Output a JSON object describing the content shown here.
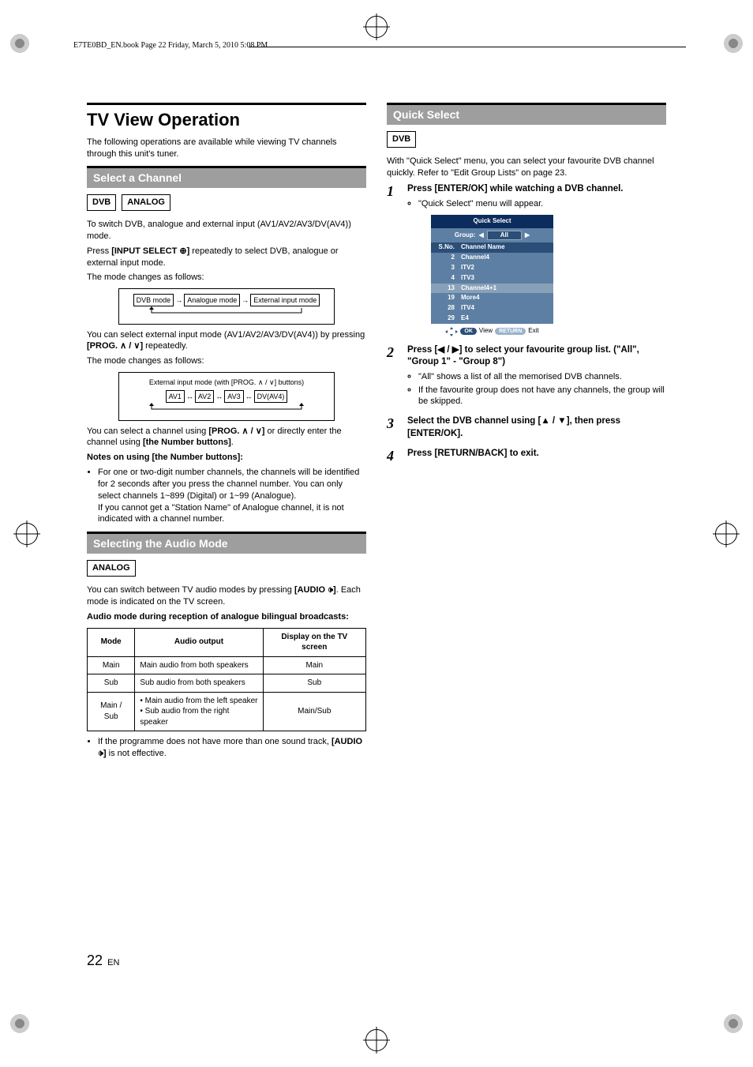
{
  "header": {
    "running_head": "E7TE0BD_EN.book  Page 22  Friday, March 5, 2010  5:08 PM"
  },
  "left": {
    "title": "TV View Operation",
    "intro": "The following operations are available while viewing TV channels through this unit's tuner.",
    "section1": {
      "heading": "Select a Channel",
      "badges": [
        "DVB",
        "ANALOG"
      ],
      "p1": "To switch DVB, analogue and external input (AV1/AV2/AV3/DV(AV4)) mode.",
      "p2a": "Press ",
      "p2b": "[INPUT SELECT ⊕]",
      "p2c": " repeatedly to select DVB, analogue or external input mode.",
      "p3": "The mode changes as follows:",
      "flow1": {
        "boxes": [
          "DVB mode",
          "Analogue mode",
          "External input mode"
        ]
      },
      "p4": "You can select external input mode (AV1/AV2/AV3/DV(AV4)) by pressing ",
      "p4b": "[PROG. ∧ / ∨]",
      "p4c": " repeatedly.",
      "p5": "The mode changes as follows:",
      "flow2": {
        "title": "External input mode (with [PROG. ∧ / ∨] buttons)",
        "boxes": [
          "AV1",
          "AV2",
          "AV3",
          "DV(AV4)"
        ]
      },
      "p6a": "You can select a channel using ",
      "p6b": "[PROG. ∧ / ∨]",
      "p6c": " or directly enter the channel using ",
      "p6d": "[the Number buttons]",
      "p6e": ".",
      "notes_head": "Notes on using [the Number buttons]:",
      "note1": "For one or two-digit number channels, the channels will be identified for 2 seconds after you press the channel number. You can only select channels 1~899 (Digital) or 1~99 (Analogue).",
      "note2": "If you cannot get a \"Station Name\" of Analogue channel, it is not indicated with a channel number."
    },
    "section2": {
      "heading": "Selecting the Audio Mode",
      "badge": "ANALOG",
      "p1a": "You can switch between TV audio modes by pressing ",
      "p1b": "[AUDIO 🕩]",
      "p1c": ". Each mode is indicated on the TV screen.",
      "sub_head": "Audio mode during reception of analogue bilingual broadcasts:",
      "table": {
        "headers": [
          "Mode",
          "Audio output",
          "Display on the TV screen"
        ],
        "rows": [
          [
            "Main",
            "Main audio from both speakers",
            "Main"
          ],
          [
            "Sub",
            "Sub audio from both speakers",
            "Sub"
          ],
          [
            "Main / Sub",
            "• Main audio from the left speaker\n• Sub audio from the right speaker",
            "Main/Sub"
          ]
        ]
      },
      "foot1a": "If the programme does not have more than one sound track, ",
      "foot1b": "[AUDIO 🕩]",
      "foot1c": " is not effective."
    }
  },
  "right": {
    "section": {
      "heading": "Quick Select",
      "badge": "DVB",
      "intro": "With \"Quick Select\" menu, you can select your favourite DVB channel quickly. Refer to \"Edit Group Lists\" on page 23.",
      "steps": [
        {
          "head": "Press [ENTER/OK] while watching a DVB channel.",
          "bullets": [
            "\"Quick Select\" menu will appear."
          ]
        },
        {
          "head": "Press [◀ / ▶] to select your favourite group list. (\"All\", \"Group 1\" - \"Group 8\")",
          "bullets": [
            "\"All\" shows a list of all the memorised DVB channels.",
            "If the favourite group does not have any channels, the group will be skipped."
          ]
        },
        {
          "head": "Select the DVB channel using [▲ / ▼], then press [ENTER/OK]."
        },
        {
          "head": "Press [RETURN/BACK] to exit."
        }
      ],
      "menu": {
        "title": "Quick Select",
        "group_label": "Group:",
        "group_value": "All",
        "col1": "S.No.",
        "col2": "Channel Name",
        "rows": [
          {
            "n": "2",
            "name": "Channel4"
          },
          {
            "n": "3",
            "name": "ITV2"
          },
          {
            "n": "4",
            "name": "ITV3"
          },
          {
            "n": "13",
            "name": "Channel4+1",
            "hl": true
          },
          {
            "n": "19",
            "name": "More4"
          },
          {
            "n": "28",
            "name": "ITV4"
          },
          {
            "n": "29",
            "name": "E4"
          }
        ],
        "foot_ok": "OK",
        "foot_view": "View",
        "foot_return": "RETURN",
        "foot_exit": "Exit"
      }
    }
  },
  "page_number": "22",
  "page_lang": "EN"
}
